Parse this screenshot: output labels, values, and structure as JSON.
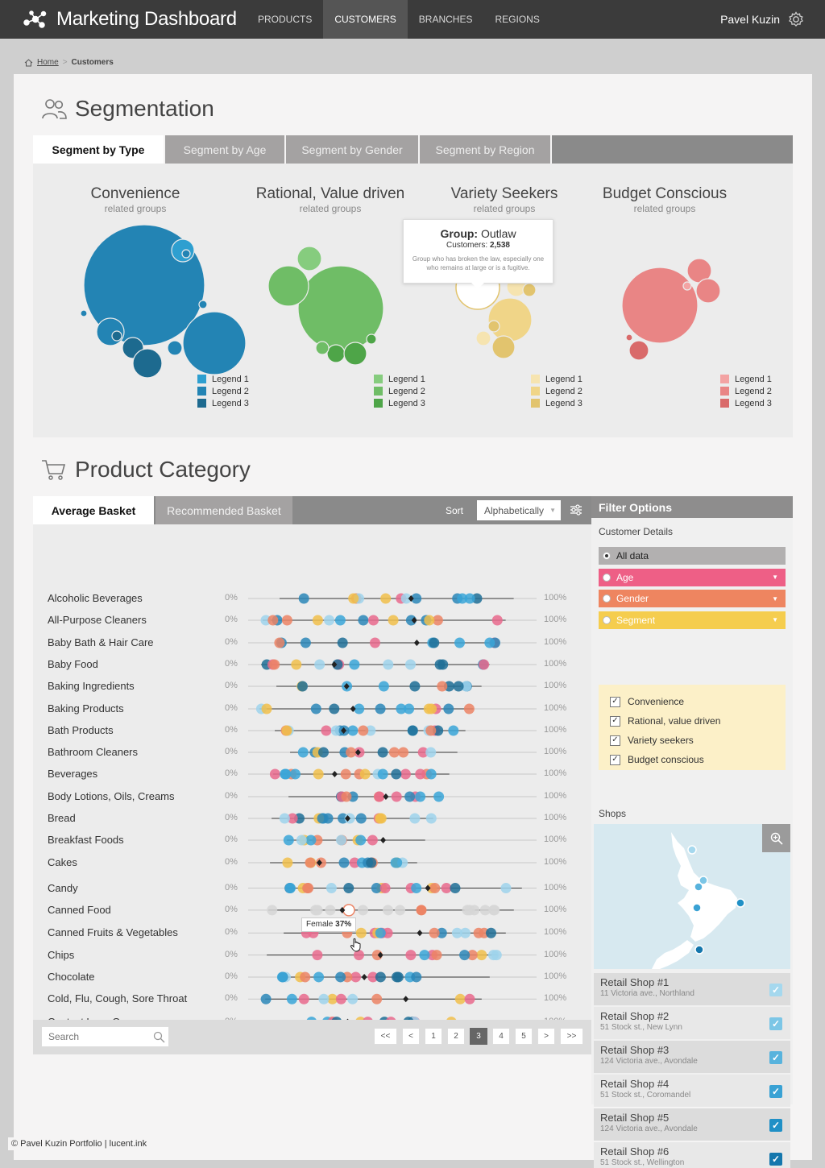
{
  "app": {
    "title": "Marketing Dashboard"
  },
  "nav": [
    {
      "label": "PRODUCTS",
      "active": false
    },
    {
      "label": "CUSTOMERS",
      "active": true
    },
    {
      "label": "BRANCHES",
      "active": false
    },
    {
      "label": "REGIONS",
      "active": false
    }
  ],
  "user": {
    "name": "Pavel Kuzin"
  },
  "breadcrumb": {
    "home": "Home",
    "separator": ">",
    "current": "Customers"
  },
  "segmentation": {
    "title": "Segmentation",
    "tabs": [
      "Segment by Type",
      "Segment by Age",
      "Segment by Gender",
      "Segment by Region"
    ],
    "active_tab": 0,
    "groups": [
      {
        "name": "Convenience",
        "sub": "related groups",
        "legend": [
          "Legend 1",
          "Legend 2",
          "Legend 3"
        ],
        "colors": [
          "#2e9fd0",
          "#2384b4",
          "#1d6a8f"
        ]
      },
      {
        "name": "Rational, Value driven",
        "sub": "related groups",
        "legend": [
          "Legend 1",
          "Legend 2",
          "Legend 3"
        ],
        "colors": [
          "#86cc7e",
          "#6fbd66",
          "#4ea548"
        ]
      },
      {
        "name": "Variety Seekers",
        "sub": "related groups",
        "legend": [
          "Legend 1",
          "Legend 2",
          "Legend 3"
        ],
        "colors": [
          "#f6e4b0",
          "#f0d588",
          "#e2c46e"
        ]
      },
      {
        "name": "Budget Conscious",
        "sub": "related groups",
        "legend": [
          "Legend 1",
          "Legend 2",
          "Legend 3"
        ],
        "colors": [
          "#f3a3a3",
          "#e98585",
          "#d96a6a"
        ]
      }
    ],
    "tooltip": {
      "label": "Group:",
      "group": "Outlaw",
      "customers_label": "Customers:",
      "customers": "2,538",
      "description": "Group who has broken the law, especially one who remains at large or is a fugitive."
    }
  },
  "product_category": {
    "title": "Product Category",
    "tabs": [
      "Average Basket",
      "Recommended Basket"
    ],
    "active_tab": 0,
    "sort_label": "Sort",
    "sort_value": "Alphabetically",
    "min_label": "0%",
    "max_label": "100%",
    "hover_tooltip": {
      "label": "Female",
      "value": "37%"
    },
    "items": [
      "Alcoholic Beverages",
      "All-Purpose Cleaners",
      "Baby Bath & Hair Care",
      "Baby Food",
      "Baking Ingredients",
      "Baking Products",
      "Bath Products",
      "Bathroom Cleaners",
      "Beverages",
      "Body Lotions, Oils, Creams",
      "Bread",
      "Breakfast Foods",
      "Cakes",
      "Candy",
      "Canned Food",
      "Canned Fruits & Vegetables",
      "Chips",
      "Chocolate",
      "Cold, Flu, Cough, Sore Throat",
      "Contact Lens Care"
    ],
    "search_placeholder": "Search",
    "pagination": [
      "<<",
      "<",
      "1",
      "2",
      "3",
      "4",
      "5",
      ">",
      ">>"
    ],
    "current_page": "3"
  },
  "filter": {
    "title": "Filter Options",
    "customer_details_label": "Customer Details",
    "options": [
      {
        "label": "All data",
        "color": "#b2b0b0",
        "selected": true,
        "dropdown": false
      },
      {
        "label": "Age",
        "color": "#ee5f86",
        "selected": false,
        "dropdown": true
      },
      {
        "label": "Gender",
        "color": "#ee8560",
        "selected": false,
        "dropdown": true
      },
      {
        "label": "Segment",
        "color": "#f5cd4e",
        "selected": false,
        "dropdown": true
      }
    ],
    "segment_checks": [
      "Convenience",
      "Rational, value driven",
      "Variety seekers",
      "Budget conscious"
    ],
    "shops_label": "Shops",
    "shops": [
      {
        "name": "Retail Shop #1",
        "address": "11 Victoria ave., Northland",
        "color": "#a5d8ee"
      },
      {
        "name": "Retail Shop #2",
        "address": "51 Stock st., New Lynn",
        "color": "#7cc6e6"
      },
      {
        "name": "Retail Shop #3",
        "address": "124 Victoria ave., Avondale",
        "color": "#58b3dd"
      },
      {
        "name": "Retail Shop #4",
        "address": "51 Stock st., Coromandel",
        "color": "#3aa2d4"
      },
      {
        "name": "Retail Shop #5",
        "address": "124 Victoria ave., Avondale",
        "color": "#2090c6"
      },
      {
        "name": "Retail Shop #6",
        "address": "51 Stock st., Wellington",
        "color": "#1577ad"
      }
    ]
  },
  "footer": {
    "text": "© Pavel Kuzin Portfolio | lucent.ink"
  }
}
